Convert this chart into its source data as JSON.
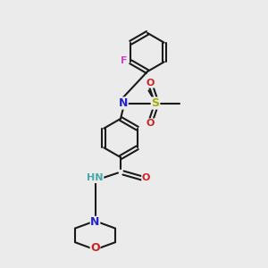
{
  "bg_color": "#ebebeb",
  "bond_color": "#1a1a1a",
  "atom_colors": {
    "F": "#cc44cc",
    "N": "#2222cc",
    "O": "#cc2222",
    "S": "#aaaa00",
    "H": "#44aaaa",
    "C": "#1a1a1a"
  },
  "bond_width": 1.5
}
